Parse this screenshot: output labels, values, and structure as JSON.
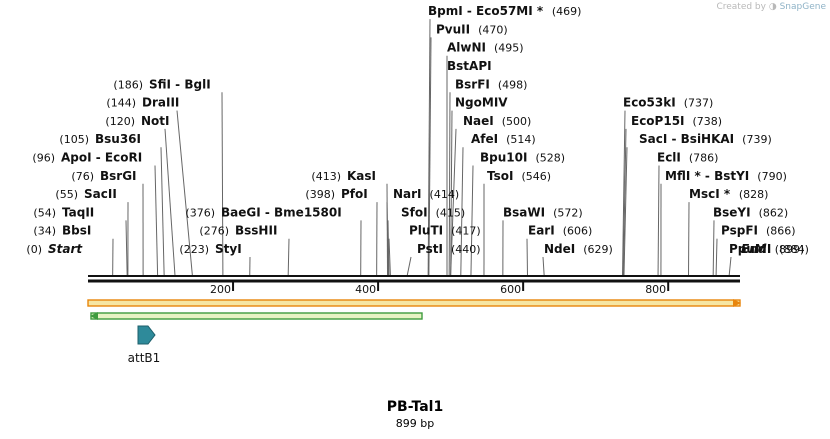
{
  "credit": {
    "prefix": "Created by",
    "brand": "SnapGene"
  },
  "plasmid": {
    "name": "PB-Tal1",
    "length_label": "899 bp",
    "length": 899
  },
  "ticks": [
    200,
    400,
    600,
    800
  ],
  "features": [
    {
      "name": "attB1",
      "direction": "forward"
    }
  ],
  "enzymes": [
    {
      "name": "Start",
      "pos": 0,
      "pos_label": "(0)",
      "italic": true,
      "side": "left"
    },
    {
      "name": "BbsI",
      "pos": 34,
      "pos_label": "(34)",
      "side": "left"
    },
    {
      "name": "TaqII",
      "pos": 54,
      "pos_label": "(54)",
      "side": "left"
    },
    {
      "name": "SacII",
      "pos": 55,
      "pos_label": "(55)",
      "side": "left"
    },
    {
      "name": "BsrGI",
      "pos": 76,
      "pos_label": "(76)",
      "side": "left"
    },
    {
      "name": "ApoI - EcoRI",
      "pos": 96,
      "pos_label": "(96)",
      "side": "left"
    },
    {
      "name": "Bsu36I",
      "pos": 105,
      "pos_label": "(105)",
      "side": "left"
    },
    {
      "name": "NotI",
      "pos": 120,
      "pos_label": "(120)",
      "side": "left"
    },
    {
      "name": "DraIII",
      "pos": 144,
      "pos_label": "(144)",
      "side": "left"
    },
    {
      "name": "SfiI - BglI",
      "pos": 186,
      "pos_label": "(186)",
      "side": "left"
    },
    {
      "name": "StyI",
      "pos": 223,
      "pos_label": "(223)",
      "side": "left"
    },
    {
      "name": "BssHII",
      "pos": 276,
      "pos_label": "(276)",
      "side": "left"
    },
    {
      "name": "BaeGI - Bme1580I",
      "pos": 376,
      "pos_label": "(376)",
      "side": "left"
    },
    {
      "name": "PfoI",
      "pos": 398,
      "pos_label": "(398)",
      "side": "left"
    },
    {
      "name": "KasI",
      "pos": 413,
      "pos_label": "(413)",
      "side": "left"
    },
    {
      "name": "PstI",
      "pos": 440,
      "pos_label": "(440)",
      "side": "right"
    },
    {
      "name": "PluTI",
      "pos": 417,
      "pos_label": "(417)",
      "side": "right"
    },
    {
      "name": "SfoI",
      "pos": 415,
      "pos_label": "(415)",
      "side": "right"
    },
    {
      "name": "NarI",
      "pos": 414,
      "pos_label": "(414)",
      "side": "right"
    },
    {
      "name": "TsoI",
      "pos": 546,
      "pos_label": "(546)",
      "side": "right"
    },
    {
      "name": "Bpu10I",
      "pos": 528,
      "pos_label": "(528)",
      "side": "right"
    },
    {
      "name": "AfeI",
      "pos": 514,
      "pos_label": "(514)",
      "side": "right"
    },
    {
      "name": "NaeI",
      "pos": 500,
      "pos_label": "(500)",
      "side": "right"
    },
    {
      "name": "NgoMIV",
      "pos": 500,
      "pos_label": "",
      "side": "right"
    },
    {
      "name": "BsrFI",
      "pos": 498,
      "pos_label": "(498)",
      "side": "right"
    },
    {
      "name": "BstAPI",
      "pos": 495,
      "pos_label": "",
      "side": "right"
    },
    {
      "name": "AlwNI",
      "pos": 495,
      "pos_label": "(495)",
      "side": "right"
    },
    {
      "name": "PvuII",
      "pos": 470,
      "pos_label": "(470)",
      "side": "right"
    },
    {
      "name": "BpmI - Eco57MI *",
      "pos": 469,
      "pos_label": "(469)",
      "side": "right"
    },
    {
      "name": "BsaWI",
      "pos": 572,
      "pos_label": "(572)",
      "side": "right"
    },
    {
      "name": "EarI",
      "pos": 606,
      "pos_label": "(606)",
      "side": "right"
    },
    {
      "name": "NdeI",
      "pos": 629,
      "pos_label": "(629)",
      "side": "right"
    },
    {
      "name": "Eco53kI",
      "pos": 737,
      "pos_label": "(737)",
      "side": "right"
    },
    {
      "name": "EcoP15I",
      "pos": 738,
      "pos_label": "(738)",
      "side": "right"
    },
    {
      "name": "SacI - BsiHKAI",
      "pos": 739,
      "pos_label": "(739)",
      "side": "right"
    },
    {
      "name": "EclI",
      "pos": 786,
      "pos_label": "(786)",
      "side": "right"
    },
    {
      "name": "MflI * - BstYI",
      "pos": 790,
      "pos_label": "(790)",
      "side": "right"
    },
    {
      "name": "MscI *",
      "pos": 828,
      "pos_label": "(828)",
      "side": "right"
    },
    {
      "name": "BseYI",
      "pos": 862,
      "pos_label": "(862)",
      "side": "right"
    },
    {
      "name": "PspFI",
      "pos": 866,
      "pos_label": "(866)",
      "side": "right"
    },
    {
      "name": "PpuMI",
      "pos": 884,
      "pos_label": "(884)",
      "side": "right"
    },
    {
      "name": "End",
      "pos": 899,
      "pos_label": "(899)",
      "italic": true,
      "side": "right"
    }
  ],
  "colors": {
    "backbone": "#111111",
    "orange_bar_fill": "#f6e6a3",
    "orange_bar_edge": "#e8850c",
    "green_bar_fill": "#e8f3c4",
    "green_bar_edge": "#3f9b3f",
    "feature_fill": "#2e8a9a",
    "feature_edge": "#1d5f6b"
  }
}
